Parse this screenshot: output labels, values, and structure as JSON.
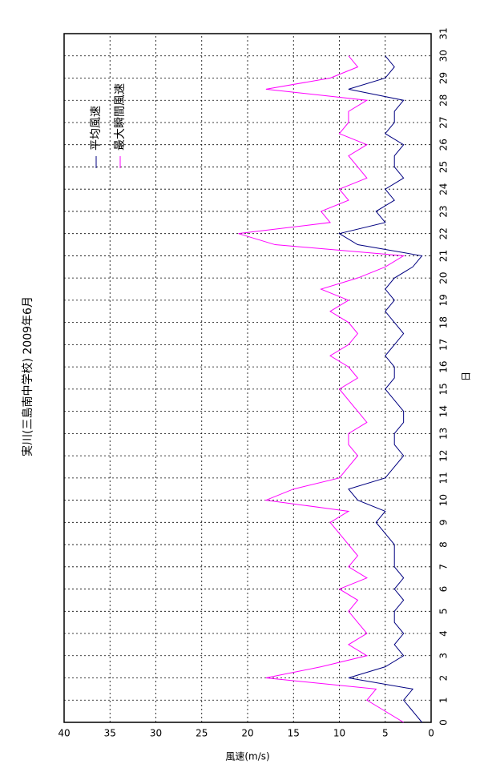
{
  "chart_data": {
    "type": "line",
    "title": "実川(三島南中学校)  2009年6月",
    "x_label": "日",
    "y_label": "風速(m/s)",
    "xlim": [
      0,
      31
    ],
    "xticks": [
      0,
      1,
      2,
      3,
      4,
      5,
      6,
      7,
      8,
      9,
      10,
      11,
      12,
      13,
      14,
      15,
      16,
      17,
      18,
      19,
      20,
      21,
      22,
      23,
      24,
      25,
      26,
      27,
      28,
      29,
      30,
      31
    ],
    "ylim": [
      0,
      40
    ],
    "yticks": [
      0,
      5,
      10,
      15,
      20,
      25,
      30,
      35,
      40
    ],
    "grid": true,
    "legend": "upper right",
    "x": [
      0,
      0.5,
      1,
      1.5,
      2,
      2.5,
      3,
      3.5,
      4,
      4.5,
      5,
      5.5,
      6,
      6.5,
      7,
      7.5,
      8,
      8.5,
      9,
      9.5,
      10,
      10.5,
      11,
      11.5,
      12,
      12.5,
      13,
      13.5,
      14,
      14.5,
      15,
      15.5,
      16,
      16.5,
      17,
      17.5,
      18,
      18.5,
      19,
      19.5,
      20,
      20.5,
      21,
      21.5,
      22,
      22.5,
      23,
      23.5,
      24,
      24.5,
      25,
      25.5,
      26,
      26.5,
      27,
      27.5,
      28,
      28.5,
      29,
      29.5,
      30
    ],
    "series": [
      {
        "name": "平均風速",
        "color": "#000080",
        "values": [
          1,
          2,
          3,
          2,
          9,
          5,
          3,
          4,
          3,
          4,
          4,
          3,
          4,
          3,
          4,
          4,
          4,
          5,
          6,
          5,
          8,
          9,
          5,
          4,
          3,
          4,
          4,
          3,
          3,
          4,
          5,
          4,
          4,
          5,
          4,
          3,
          4,
          5,
          4,
          5,
          4,
          2,
          1,
          8,
          10,
          5,
          6,
          4,
          5,
          3,
          4,
          4,
          3,
          5,
          4,
          4,
          3,
          9,
          5,
          4,
          5
        ]
      },
      {
        "name": "最大瞬間風速",
        "color": "#ff00ff",
        "values": [
          3,
          5,
          7,
          6,
          18,
          12,
          7,
          9,
          7,
          8,
          9,
          8,
          10,
          7,
          9,
          8,
          9,
          10,
          11,
          9,
          18,
          15,
          10,
          9,
          8,
          9,
          9,
          7,
          8,
          9,
          10,
          8,
          9,
          11,
          9,
          8,
          9,
          11,
          9,
          12,
          8,
          5,
          3,
          17,
          21,
          11,
          12,
          9,
          10,
          7,
          8,
          9,
          7,
          10,
          9,
          9,
          7,
          18,
          11,
          8,
          9
        ]
      }
    ]
  }
}
